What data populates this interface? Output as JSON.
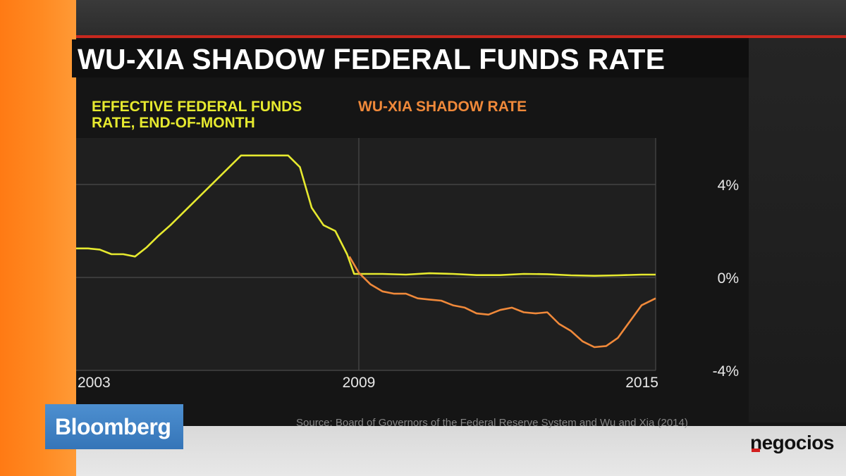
{
  "title": "WU-XIA SHADOW FEDERAL FUNDS RATE",
  "source": "Source: Board of Governors of the Federal Reserve System and Wu and Xia (2014)",
  "branding": {
    "bloomberg": "Bloomberg",
    "negocios": "negocios"
  },
  "colors": {
    "ffr": "#e6e92f",
    "shadow": "#f0893a",
    "accent_red": "#c8281e",
    "bloomberg_blue": "#3f82c4"
  },
  "chart_data": {
    "type": "line",
    "xlim": [
      2003,
      2015.3
    ],
    "ylim": [
      -4,
      6
    ],
    "x_ticks": [
      {
        "value": 2003,
        "label": "2003"
      },
      {
        "value": 2009,
        "label": "2009"
      },
      {
        "value": 2015,
        "label": "2015"
      }
    ],
    "y_ticks": [
      {
        "value": 4,
        "label": "4%"
      },
      {
        "value": 0,
        "label": "0%"
      },
      {
        "value": -4,
        "label": "-4%"
      }
    ],
    "gridlines_y": [
      4,
      0,
      -4
    ],
    "gridlines_x": [
      2009,
      2015.3
    ],
    "series": [
      {
        "name": "EFFECTIVE FEDERAL FUNDS RATE, END-OF-MONTH",
        "color": "#e6e92f",
        "points": [
          [
            2003.0,
            1.25
          ],
          [
            2003.25,
            1.25
          ],
          [
            2003.5,
            1.2
          ],
          [
            2003.75,
            1.0
          ],
          [
            2004.0,
            1.0
          ],
          [
            2004.25,
            0.9
          ],
          [
            2004.5,
            1.3
          ],
          [
            2004.75,
            1.8
          ],
          [
            2005.0,
            2.25
          ],
          [
            2005.25,
            2.75
          ],
          [
            2005.5,
            3.25
          ],
          [
            2005.75,
            3.75
          ],
          [
            2006.0,
            4.25
          ],
          [
            2006.25,
            4.75
          ],
          [
            2006.5,
            5.25
          ],
          [
            2006.75,
            5.25
          ],
          [
            2007.0,
            5.25
          ],
          [
            2007.25,
            5.25
          ],
          [
            2007.5,
            5.25
          ],
          [
            2007.75,
            4.75
          ],
          [
            2008.0,
            3.0
          ],
          [
            2008.25,
            2.25
          ],
          [
            2008.5,
            2.0
          ],
          [
            2008.75,
            1.0
          ],
          [
            2008.9,
            0.15
          ],
          [
            2009.0,
            0.15
          ],
          [
            2009.5,
            0.15
          ],
          [
            2010.0,
            0.12
          ],
          [
            2010.5,
            0.18
          ],
          [
            2011.0,
            0.15
          ],
          [
            2011.5,
            0.1
          ],
          [
            2012.0,
            0.1
          ],
          [
            2012.5,
            0.15
          ],
          [
            2013.0,
            0.14
          ],
          [
            2013.5,
            0.09
          ],
          [
            2014.0,
            0.07
          ],
          [
            2014.5,
            0.09
          ],
          [
            2015.0,
            0.12
          ],
          [
            2015.3,
            0.12
          ]
        ]
      },
      {
        "name": "WU-XIA SHADOW RATE",
        "color": "#f0893a",
        "points": [
          [
            2008.8,
            0.9
          ],
          [
            2009.0,
            0.2
          ],
          [
            2009.25,
            -0.3
          ],
          [
            2009.5,
            -0.6
          ],
          [
            2009.75,
            -0.7
          ],
          [
            2010.0,
            -0.7
          ],
          [
            2010.25,
            -0.9
          ],
          [
            2010.5,
            -0.95
          ],
          [
            2010.75,
            -1.0
          ],
          [
            2011.0,
            -1.2
          ],
          [
            2011.25,
            -1.3
          ],
          [
            2011.5,
            -1.55
          ],
          [
            2011.75,
            -1.6
          ],
          [
            2012.0,
            -1.4
          ],
          [
            2012.25,
            -1.3
          ],
          [
            2012.5,
            -1.5
          ],
          [
            2012.75,
            -1.55
          ],
          [
            2013.0,
            -1.5
          ],
          [
            2013.25,
            -2.0
          ],
          [
            2013.5,
            -2.3
          ],
          [
            2013.75,
            -2.75
          ],
          [
            2014.0,
            -3.0
          ],
          [
            2014.25,
            -2.95
          ],
          [
            2014.5,
            -2.6
          ],
          [
            2014.75,
            -1.9
          ],
          [
            2015.0,
            -1.2
          ],
          [
            2015.3,
            -0.9
          ]
        ]
      }
    ]
  }
}
